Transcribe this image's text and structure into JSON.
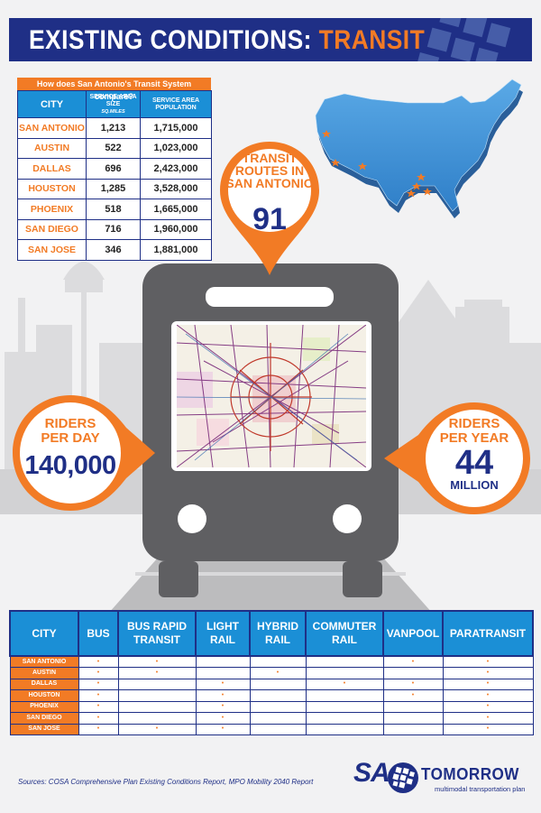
{
  "header": {
    "title_main": "EXISTING CONDITIONS:",
    "title_accent": "TRANSIT"
  },
  "compare_table": {
    "caption": "How does San Antonio's Transit System compare?",
    "headers": {
      "city": "CITY",
      "area": "SERVICE AREA SIZE",
      "area_unit": "SQ.MILES",
      "population": "SERVICE AREA POPULATION"
    },
    "rows": [
      {
        "city": "SAN ANTONIO",
        "area": "1,213",
        "population": "1,715,000"
      },
      {
        "city": "AUSTIN",
        "area": "522",
        "population": "1,023,000"
      },
      {
        "city": "DALLAS",
        "area": "696",
        "population": "2,423,000"
      },
      {
        "city": "HOUSTON",
        "area": "1,285",
        "population": "3,528,000"
      },
      {
        "city": "PHOENIX",
        "area": "518",
        "population": "1,665,000"
      },
      {
        "city": "SAN DIEGO",
        "area": "716",
        "population": "1,960,000"
      },
      {
        "city": "SAN JOSE",
        "area": "346",
        "population": "1,881,000"
      }
    ]
  },
  "stats": {
    "routes_label": "TRANSIT ROUTES IN SAN ANTONIO",
    "routes_label_lines": [
      "TRANSIT",
      "ROUTES IN",
      "SAN ANTONIO"
    ],
    "routes_value": "91",
    "riders_day_label_lines": [
      "RIDERS",
      "PER DAY"
    ],
    "riders_day_value": "140,000",
    "riders_year_label_lines": [
      "RIDERS",
      "PER YEAR"
    ],
    "riders_year_value": "44",
    "riders_year_unit": "MILLION"
  },
  "modes_table": {
    "headers": [
      "CITY",
      "BUS",
      "BUS RAPID TRANSIT",
      "LIGHT RAIL",
      "HYBRID RAIL",
      "COMMUTER RAIL",
      "VANPOOL",
      "PARATRANSIT"
    ],
    "header_lines": [
      [
        "CITY"
      ],
      [
        "BUS"
      ],
      [
        "BUS RAPID",
        "TRANSIT"
      ],
      [
        "LIGHT",
        "RAIL"
      ],
      [
        "HYBRID",
        "RAIL"
      ],
      [
        "COMMUTER",
        "RAIL"
      ],
      [
        "VANPOOL"
      ],
      [
        "PARATRANSIT"
      ]
    ],
    "dot": "•",
    "rows": [
      {
        "city": "SAN ANTONIO",
        "modes": [
          true,
          true,
          false,
          false,
          false,
          true,
          true
        ]
      },
      {
        "city": "AUSTIN",
        "modes": [
          true,
          true,
          false,
          true,
          false,
          false,
          true
        ]
      },
      {
        "city": "DALLAS",
        "modes": [
          true,
          false,
          true,
          false,
          true,
          true,
          true
        ]
      },
      {
        "city": "HOUSTON",
        "modes": [
          true,
          false,
          true,
          false,
          false,
          true,
          true
        ]
      },
      {
        "city": "PHOENIX",
        "modes": [
          true,
          false,
          true,
          false,
          false,
          false,
          true
        ]
      },
      {
        "city": "SAN DIEGO",
        "modes": [
          true,
          false,
          true,
          false,
          false,
          false,
          true
        ]
      },
      {
        "city": "SAN JOSE",
        "modes": [
          true,
          true,
          true,
          false,
          false,
          false,
          true
        ]
      }
    ]
  },
  "footer": {
    "source": "Sources: COSA Comprehensive Plan Existing Conditions Report, MPO Mobility 2040 Report",
    "logo_sa": "SA",
    "logo_tomorrow": "TOMORROW",
    "logo_tagline": "multimodal transportation plan"
  },
  "colors": {
    "navy": "#1f2f86",
    "orange": "#f27b25",
    "blue": "#1b8fd6",
    "gray": "#5f5f62"
  },
  "icons": [
    "us-map-icon",
    "bus-icon",
    "skyline-icon",
    "route-map-image",
    "globe-logo-icon"
  ]
}
